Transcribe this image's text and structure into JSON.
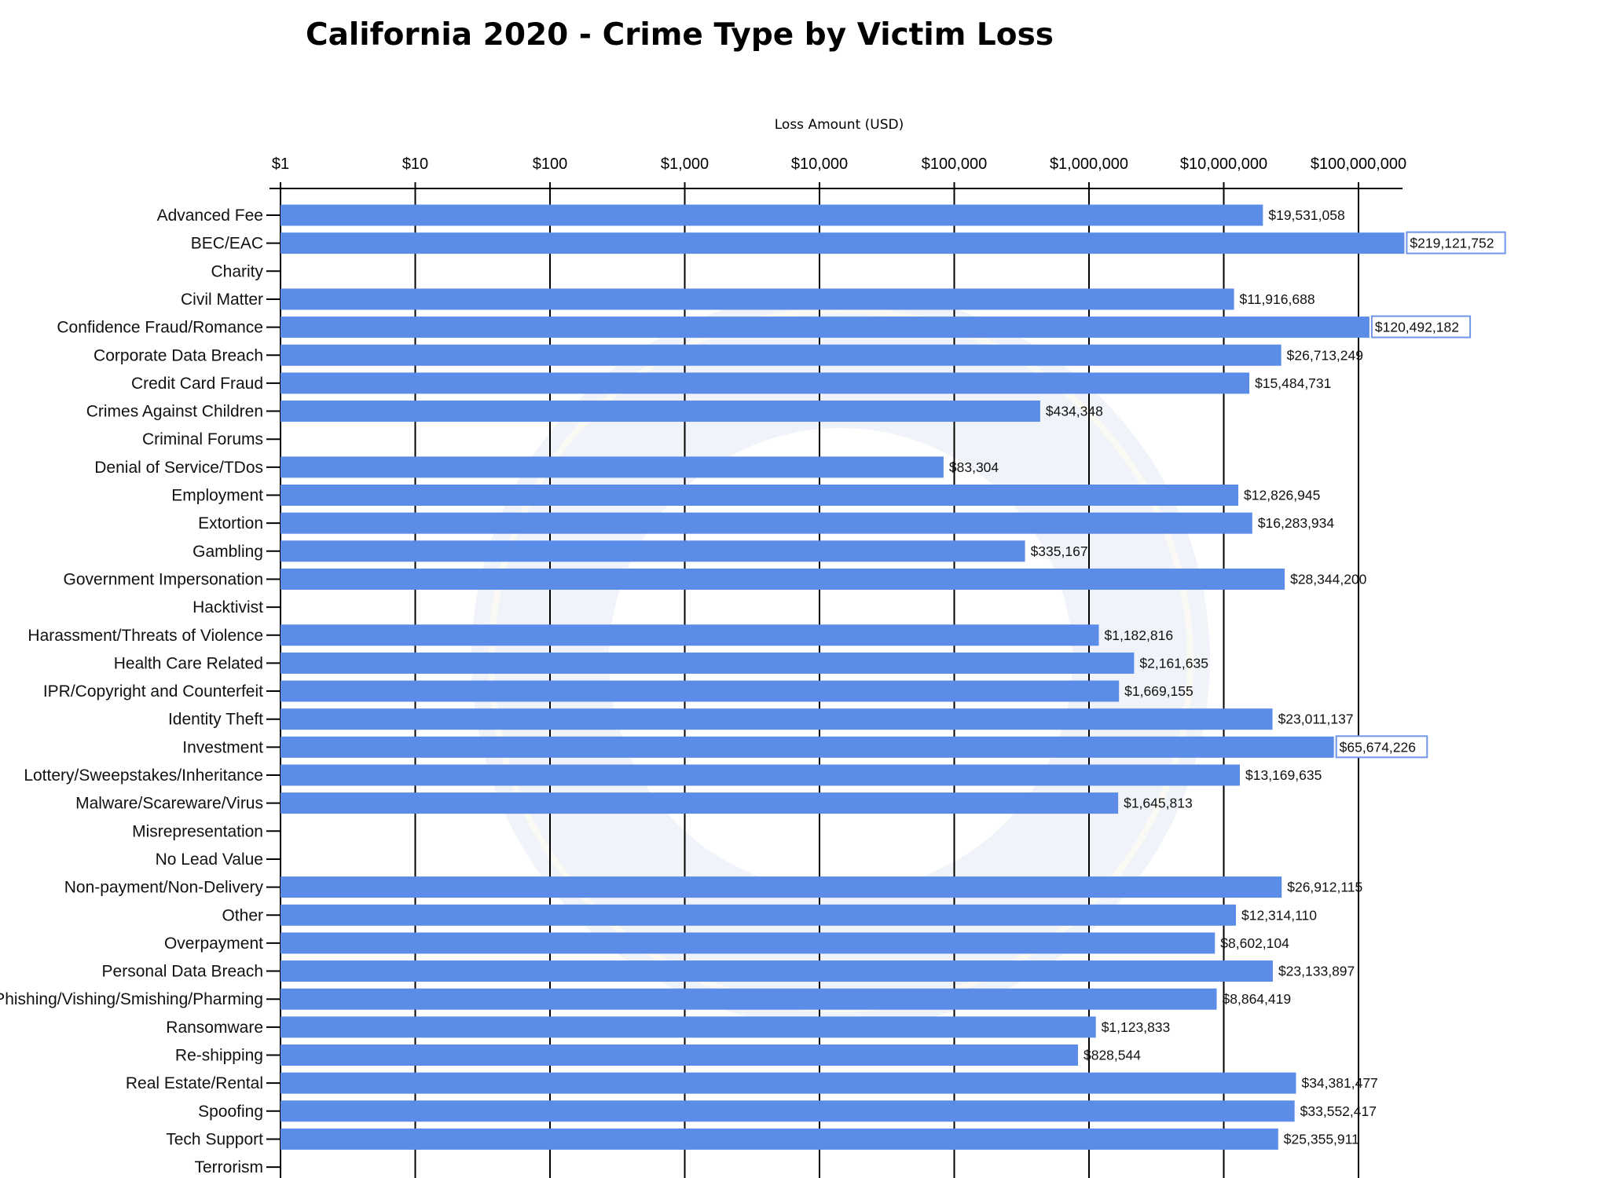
{
  "chart_data": {
    "type": "bar",
    "orientation": "horizontal",
    "title": "California 2020 - Crime Type by Victim Loss",
    "xlabel": "Loss Amount (USD)",
    "ylabel": "",
    "x_scale": "log",
    "xlim": [
      1,
      300000000
    ],
    "x_ticks": [
      1,
      10,
      100,
      1000,
      10000,
      100000,
      1000000,
      10000000,
      100000000
    ],
    "x_tick_labels": [
      "$1",
      "$10",
      "$100",
      "$1,000",
      "$10,000",
      "$100,000",
      "$1,000,000",
      "$10,000,000",
      "$100,000,000"
    ],
    "grid": "vertical",
    "bar_color": "#5b8ce8",
    "legend": "none",
    "categories": [
      "Advanced Fee",
      "BEC/EAC",
      "Charity",
      "Civil Matter",
      "Confidence Fraud/Romance",
      "Corporate Data Breach",
      "Credit Card Fraud",
      "Crimes Against Children",
      "Criminal Forums",
      "Denial of Service/TDos",
      "Employment",
      "Extortion",
      "Gambling",
      "Government Impersonation",
      "Hacktivist",
      "Harassment/Threats of Violence",
      "Health Care Related",
      "IPR/Copyright and Counterfeit",
      "Identity Theft",
      "Investment",
      "Lottery/Sweepstakes/Inheritance",
      "Malware/Scareware/Virus",
      "Misrepresentation",
      "No Lead Value",
      "Non-payment/Non-Delivery",
      "Other",
      "Overpayment",
      "Personal Data Breach",
      "Phishing/Vishing/Smishing/Pharming",
      "Ransomware",
      "Re-shipping",
      "Real Estate/Rental",
      "Spoofing",
      "Tech Support",
      "Terrorism"
    ],
    "values": [
      19531058,
      219121752,
      null,
      11916688,
      120492182,
      26713249,
      15484731,
      434348,
      null,
      83304,
      12826945,
      16283934,
      335167,
      28344200,
      null,
      1182816,
      2161635,
      1669155,
      23011137,
      65674226,
      13169635,
      1645813,
      null,
      null,
      26912115,
      12314110,
      8602104,
      23133897,
      8864419,
      1123833,
      828544,
      34381477,
      33552417,
      25355911,
      null
    ],
    "value_labels": [
      "$19,531,058",
      "$219,121,752",
      "",
      "$11,916,688",
      "$120,492,182",
      "$26,713,249",
      "$15,484,731",
      "$434,348",
      "",
      "$83,304",
      "$12,826,945",
      "$16,283,934",
      "$335,167",
      "$28,344,200",
      "",
      "$1,182,816",
      "$2,161,635",
      "$1,669,155",
      "$23,011,137",
      "$65,674,226",
      "$13,169,635",
      "$1,645,813",
      "",
      "",
      "$26,912,115",
      "$12,314,110",
      "$8,602,104",
      "$23,133,897",
      "$8,864,419",
      "$1,123,833",
      "$828,544",
      "$34,381,477",
      "$33,552,417",
      "$25,355,911",
      ""
    ],
    "boxed_labels": [
      false,
      true,
      false,
      false,
      true,
      false,
      false,
      false,
      false,
      false,
      false,
      false,
      false,
      false,
      false,
      false,
      false,
      false,
      false,
      true,
      false,
      false,
      false,
      false,
      false,
      false,
      false,
      false,
      false,
      false,
      false,
      false,
      false,
      false,
      false
    ]
  }
}
